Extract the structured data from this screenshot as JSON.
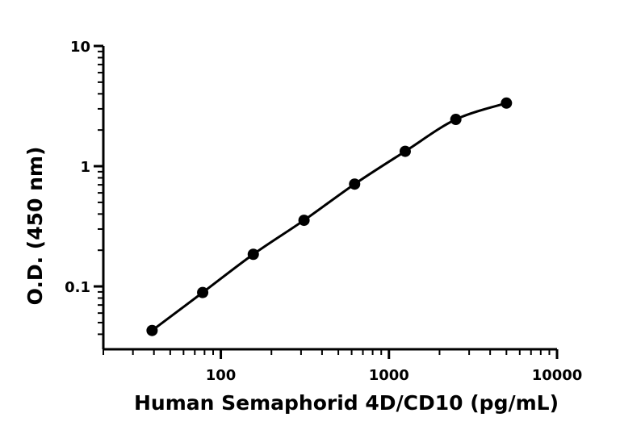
{
  "chart_data": {
    "type": "scatter",
    "x_scale": "log",
    "y_scale": "log",
    "xlabel": "Human Semaphorid 4D/CD10 (pg/mL)",
    "ylabel": "O.D. (450 nm)",
    "xlim": [
      20,
      10000
    ],
    "ylim": [
      0.03,
      10
    ],
    "x_ticks": [
      {
        "value": 100,
        "label": "100"
      },
      {
        "value": 1000,
        "label": "1000"
      },
      {
        "value": 10000,
        "label": "10000"
      }
    ],
    "y_ticks": [
      {
        "value": 0.1,
        "label": "0.1"
      },
      {
        "value": 1,
        "label": "1"
      },
      {
        "value": 10,
        "label": "10"
      }
    ],
    "grid": false,
    "legend": "none",
    "series": [
      {
        "points": [
          {
            "x": 39,
            "y": 0.043
          },
          {
            "x": 78,
            "y": 0.089
          },
          {
            "x": 156,
            "y": 0.185
          },
          {
            "x": 312.5,
            "y": 0.355
          },
          {
            "x": 625,
            "y": 0.71
          },
          {
            "x": 1250,
            "y": 1.33
          },
          {
            "x": 2500,
            "y": 2.45
          },
          {
            "x": 5000,
            "y": 3.35
          }
        ],
        "fit": "4PL"
      }
    ],
    "colors": {
      "marker": "#000000",
      "line": "#000000"
    }
  }
}
